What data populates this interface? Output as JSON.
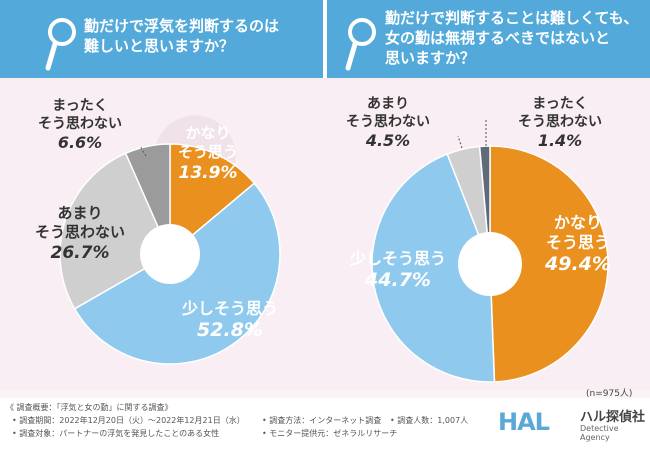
{
  "colors": {
    "header": "#52a9da",
    "orange": "#e9901e",
    "blue": "#8fcaee",
    "lightgray": "#cfcfcf",
    "darkgray": "#9b9b9b",
    "slate": "#5f6b7a"
  },
  "questions": {
    "left": [
      "勤だけで浮気を判断するのは",
      "難しいと思いますか？"
    ],
    "right": [
      "勤だけで判断することは難しくても、",
      "女の勤は無視するべきではないと",
      "思いますか？"
    ]
  },
  "chart_data": [
    {
      "type": "pie",
      "title": "勤だけで浮気を判断するのは難しいと思いますか？",
      "unit": "%",
      "slices": [
        {
          "label": "かなりそう思う",
          "label_lines": [
            "かなり",
            "そう思う"
          ],
          "value": 13.9,
          "value_text": "13.9%",
          "color": "#e9901e"
        },
        {
          "label": "少しそう思う",
          "label_lines": [
            "少しそう思う"
          ],
          "value": 52.8,
          "value_text": "52.8%",
          "color": "#8fcaee"
        },
        {
          "label": "あまりそう思わない",
          "label_lines": [
            "あまり",
            "そう思わない"
          ],
          "value": 26.7,
          "value_text": "26.7%",
          "color": "#cfcfcf"
        },
        {
          "label": "まったくそう思わない",
          "label_lines": [
            "まったく",
            "そう思わない"
          ],
          "value": 6.6,
          "value_text": "6.6%",
          "color": "#9b9b9b"
        }
      ]
    },
    {
      "type": "pie",
      "title": "勤だけで判断することは難しくても、女の勤は無視するべきではないと思いますか？",
      "unit": "%",
      "slices": [
        {
          "label": "かなりそう思う",
          "label_lines": [
            "かなり",
            "そう思う"
          ],
          "value": 49.4,
          "value_text": "49.4%",
          "color": "#e9901e"
        },
        {
          "label": "少しそう思う",
          "label_lines": [
            "少しそう思う"
          ],
          "value": 44.7,
          "value_text": "44.7%",
          "color": "#8fcaee"
        },
        {
          "label": "あまりそう思わない",
          "label_lines": [
            "あまり",
            "そう思わない"
          ],
          "value": 4.5,
          "value_text": "4.5%",
          "color": "#cfcfcf"
        },
        {
          "label": "まったくそう思わない",
          "label_lines": [
            "まったく",
            "そう思わない"
          ],
          "value": 1.4,
          "value_text": "1.4%",
          "color": "#5f6b7a"
        }
      ]
    }
  ],
  "note": "(n=975人)",
  "footer": {
    "title": "《 調査概要：「浮気と女の勤」に関する調査》",
    "period": "• 調査期間：2022年12月20日（火）～2022年12月21日（水）",
    "target": "• 調査対象：パートナーの浮気を発見したことのある女性",
    "method": "• 調査方法：インターネット調査",
    "provider": "• モニター提供元：ゼネラルリサーチ",
    "count": "• 調査人数：1,007人"
  },
  "logo": {
    "brand": "HAL",
    "ja": "ハル探偵社",
    "en": "Detective Agency"
  }
}
